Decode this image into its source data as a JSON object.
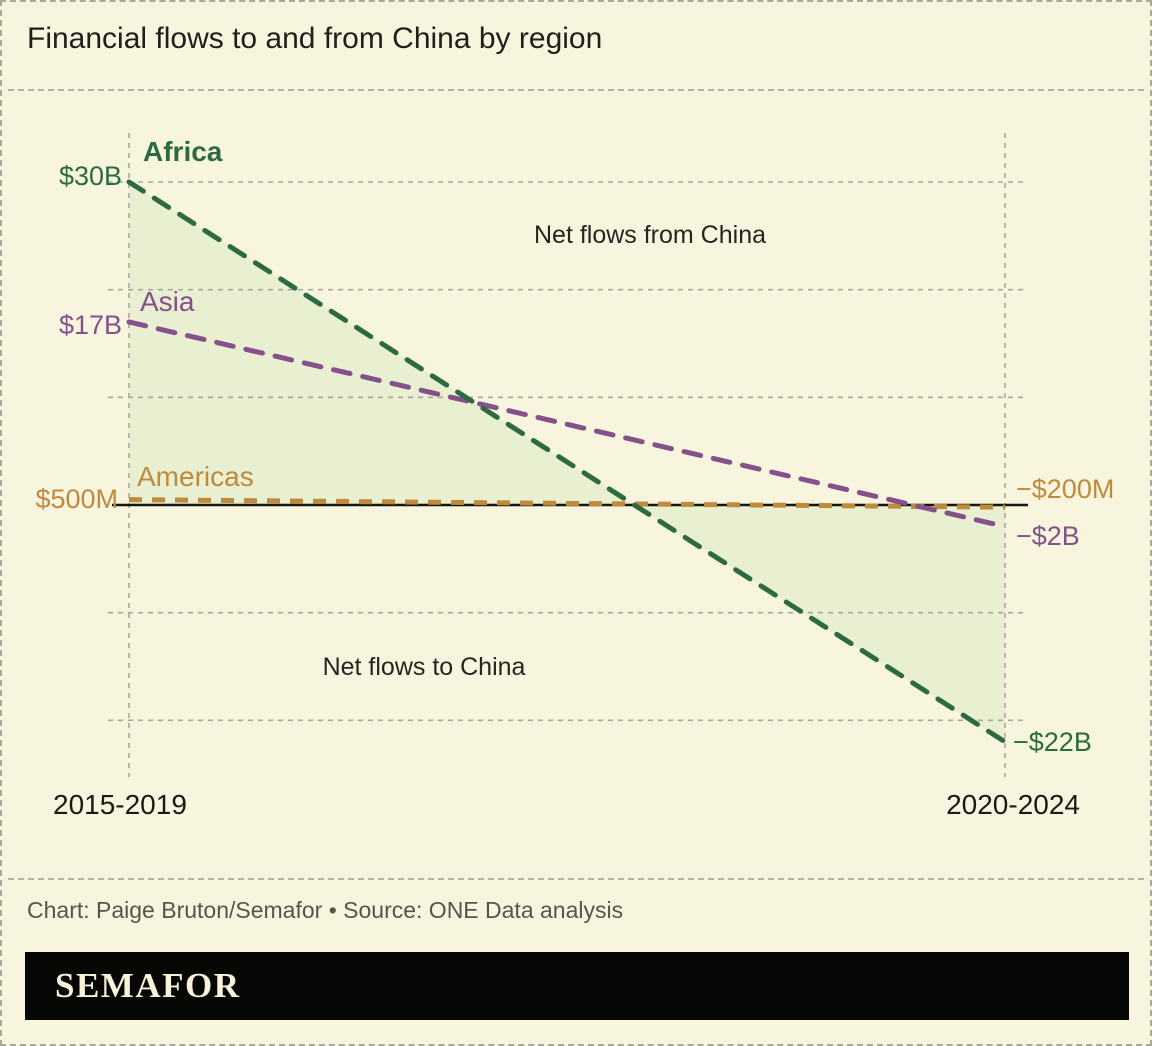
{
  "title": "Financial flows to and from China by region",
  "annotations": {
    "from_china": "Net flows from China",
    "to_china": "Net flows to China"
  },
  "x_axis": {
    "left": "2015-2019",
    "right": "2020-2024"
  },
  "footer": {
    "credit": "Chart: Paige Bruton/Semafor • Source: ONE Data analysis"
  },
  "logo": "SEMAFOR",
  "colors": {
    "background": "#f8f5de",
    "area_fill": "#e9efd1",
    "gridline": "#a9a99b",
    "zero_line": "#16150f",
    "title_text": "#201f1a",
    "annotation_text": "#26251f",
    "footer_text": "#56554d",
    "logo_bar": "#070706",
    "logo_text": "#f7f2da"
  },
  "chart_data": {
    "type": "line",
    "subtype": "slope-chart",
    "title": "Financial flows to and from China by region",
    "categories": [
      "2015-2019",
      "2020-2024"
    ],
    "unit": "billion USD",
    "series": [
      {
        "name": "Africa",
        "values": [
          30,
          -22
        ],
        "start_label": "$30B",
        "end_label": "−$22B",
        "color": "#2d6a40"
      },
      {
        "name": "Asia",
        "values": [
          17,
          -2
        ],
        "start_label": "$17B",
        "end_label": "−$2B",
        "color": "#85518b"
      },
      {
        "name": "Americas",
        "values": [
          0.5,
          -0.2
        ],
        "start_label": "$500M",
        "end_label": "−$200M",
        "color": "#bf8a3c"
      }
    ],
    "baseline": 0,
    "gridlines_billion_usd": [
      30,
      20,
      10,
      -10,
      -20
    ],
    "area_fill_series": "Africa",
    "ylim": [
      -25,
      32
    ],
    "grid": true,
    "legend_position": "inline-labels"
  }
}
